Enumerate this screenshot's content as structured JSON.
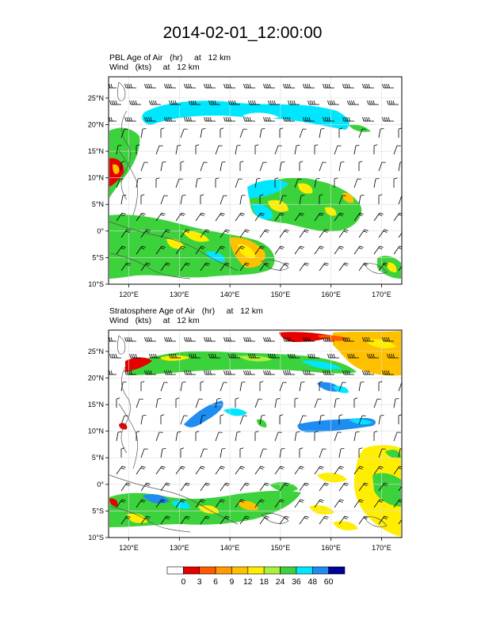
{
  "title": "2014-02-01_12:00:00",
  "panels": [
    {
      "id": "pbl",
      "line1": "PBL Age of Air   (hr)     at   12 km",
      "line2": "Wind   (kts)     at   12 km",
      "field": "PBL Age of Air"
    },
    {
      "id": "strat",
      "line1": "Stratosphere Age of Air   (hr)     at   12 km",
      "line2": "Wind   (kts)     at   12 km",
      "field": "Stratosphere Age of Air"
    }
  ],
  "axes": {
    "lon_ticks": [
      "120°E",
      "130°E",
      "140°E",
      "150°E",
      "160°E",
      "170°E"
    ],
    "lat_ticks": [
      "25°N",
      "20°N",
      "15°N",
      "10°N",
      "5°N",
      "0°",
      "5°S",
      "10°S"
    ],
    "lon_range": [
      116,
      174
    ],
    "lat_range": [
      -10,
      29
    ]
  },
  "colorbar": {
    "labels": [
      "0",
      "3",
      "6",
      "9",
      "12",
      "18",
      "24",
      "36",
      "48",
      "60"
    ],
    "colors": [
      "#ffffff",
      "#e60000",
      "#ff5a00",
      "#ff9a00",
      "#ffc000",
      "#ffee00",
      "#aaf03c",
      "#3cd23c",
      "#00e6ff",
      "#1e8cf0",
      "#00009a"
    ]
  },
  "chart_data": {
    "type": "heatmap",
    "x_unit": "degrees longitude",
    "y_unit": "degrees latitude",
    "levels": [
      0,
      3,
      6,
      9,
      12,
      18,
      24,
      36,
      48,
      60
    ],
    "panels": [
      {
        "field": "PBL Age of Air (hr) at 12 km",
        "features": [
          {
            "level_color": "#00e6ff",
            "lon": [
              127,
              161
            ],
            "lat": [
              19,
              23
            ],
            "note": "upper band"
          },
          {
            "level_color": "#3cd23c",
            "lon": [
              116,
              128
            ],
            "lat": [
              16,
              20
            ]
          },
          {
            "level_color": "#3cd23c",
            "lon": [
              116,
              146
            ],
            "lat": [
              -8,
              3
            ]
          },
          {
            "level_color": "#ffc000",
            "lon": [
              140,
              148
            ],
            "lat": [
              -5,
              -2
            ]
          },
          {
            "level_color": "#3cd23c",
            "lon": [
              149,
              162
            ],
            "lat": [
              2,
              8
            ]
          },
          {
            "level_color": "#00e6ff",
            "lon": [
              147,
              160
            ],
            "lat": [
              6,
              10
            ]
          },
          {
            "level_color": "#ffee00",
            "lon": [
              148,
              156
            ],
            "lat": [
              3,
              6
            ]
          }
        ]
      },
      {
        "field": "Stratosphere Age of Air (hr) at 12 km",
        "features": [
          {
            "level_color": "#3cd23c",
            "lon": [
              124,
              163
            ],
            "lat": [
              19,
              25
            ],
            "note": "upper band"
          },
          {
            "level_color": "#ffc000",
            "lon": [
              162,
              174
            ],
            "lat": [
              20,
              29
            ]
          },
          {
            "level_color": "#e60000",
            "lon": [
              149,
              160
            ],
            "lat": [
              27,
              29
            ]
          },
          {
            "level_color": "#1e8cf0",
            "lon": [
              132,
              146
            ],
            "lat": [
              9,
              14
            ]
          },
          {
            "level_color": "#1e8cf0",
            "lon": [
              150,
              164
            ],
            "lat": [
              8,
              11
            ]
          },
          {
            "level_color": "#3cd23c",
            "lon": [
              116,
              150
            ],
            "lat": [
              -10,
              -3
            ]
          },
          {
            "level_color": "#ffee00",
            "lon": [
              150,
              174
            ],
            "lat": [
              -10,
              6
            ]
          }
        ]
      }
    ]
  }
}
